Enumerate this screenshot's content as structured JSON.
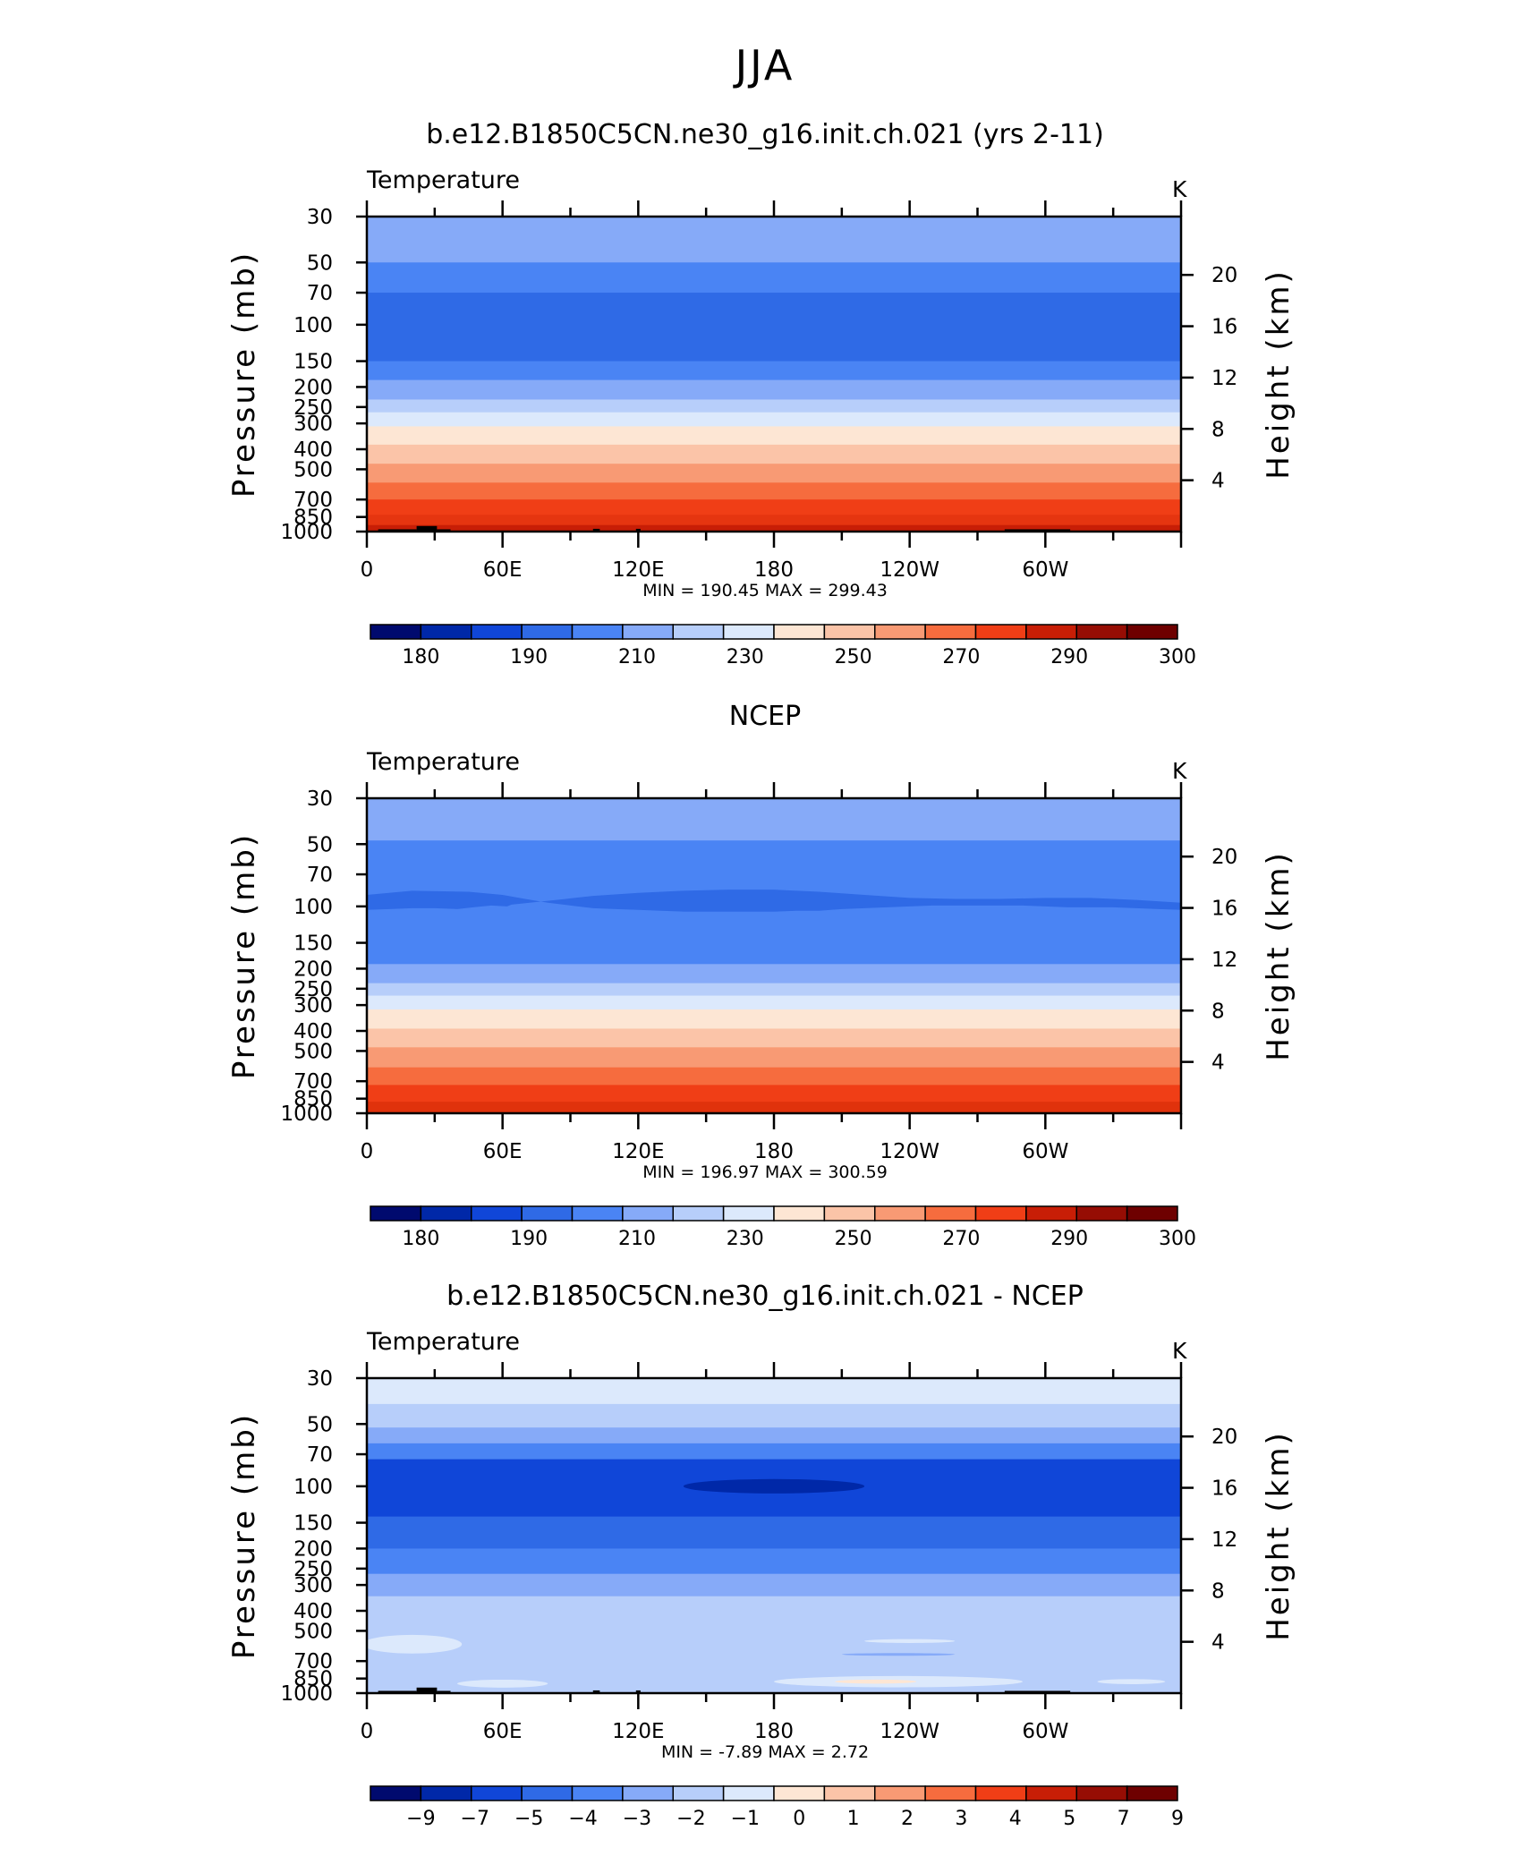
{
  "page_title": "JJA",
  "chart_data": [
    {
      "type": "contour",
      "title": "b.e12.B1850C5CN.ne30_g16.init.ch.021 (yrs 2-11)",
      "variable": "Temperature",
      "units": "K",
      "xlabel": "",
      "ylabel": "Pressure (mb)",
      "y2label": "Height (km)",
      "x_ticks": [
        "0",
        "60E",
        "120E",
        "180",
        "120W",
        "60W"
      ],
      "pressure_levels": [
        "30",
        "50",
        "70",
        "100",
        "150",
        "200",
        "250",
        "300",
        "400",
        "500",
        "700",
        "850",
        "1000"
      ],
      "height_ticks": [
        "20",
        "16",
        "12",
        "8",
        "4"
      ],
      "stats": "MIN = 190.45   MAX = 299.43",
      "min": 190.45,
      "max": 299.43,
      "colorbar_labels": [
        "180",
        "190",
        "210",
        "230",
        "250",
        "270",
        "290",
        "300"
      ],
      "colorbar_colors": [
        "#000a6e",
        "#0028a8",
        "#1046d8",
        "#2f6ae6",
        "#4a84f4",
        "#86aaf8",
        "#b7cefa",
        "#dce9fc",
        "#fde6d4",
        "#fbc4a8",
        "#f89a74",
        "#f66c3e",
        "#f03e16",
        "#c81e06",
        "#960d04",
        "#6e0000"
      ],
      "bands": [
        {
          "from": 30,
          "to": 50,
          "color": "#86aaf8"
        },
        {
          "from": 50,
          "to": 70,
          "color": "#4a84f4"
        },
        {
          "from": 70,
          "to": 150,
          "color": "#2f6ae6"
        },
        {
          "from": 150,
          "to": 185,
          "color": "#4a84f4"
        },
        {
          "from": 185,
          "to": 230,
          "color": "#86aaf8"
        },
        {
          "from": 230,
          "to": 265,
          "color": "#b7cefa"
        },
        {
          "from": 265,
          "to": 310,
          "color": "#dce9fc"
        },
        {
          "from": 310,
          "to": 380,
          "color": "#fde6d4"
        },
        {
          "from": 380,
          "to": 470,
          "color": "#fbc4a8"
        },
        {
          "from": 470,
          "to": 580,
          "color": "#f89a74"
        },
        {
          "from": 580,
          "to": 700,
          "color": "#f66c3e"
        },
        {
          "from": 700,
          "to": 830,
          "color": "#f03e16"
        },
        {
          "from": 830,
          "to": 930,
          "color": "#e53510"
        },
        {
          "from": 930,
          "to": 1000,
          "color": "#c81e06"
        }
      ],
      "features": [],
      "topography": true
    },
    {
      "type": "contour",
      "title": "NCEP",
      "variable": "Temperature",
      "units": "K",
      "xlabel": "",
      "ylabel": "Pressure (mb)",
      "y2label": "Height (km)",
      "x_ticks": [
        "0",
        "60E",
        "120E",
        "180",
        "120W",
        "60W"
      ],
      "pressure_levels": [
        "30",
        "50",
        "70",
        "100",
        "150",
        "200",
        "250",
        "300",
        "400",
        "500",
        "700",
        "850",
        "1000"
      ],
      "height_ticks": [
        "20",
        "16",
        "12",
        "8",
        "4"
      ],
      "stats": "MIN = 196.97   MAX = 300.59",
      "min": 196.97,
      "max": 300.59,
      "colorbar_labels": [
        "180",
        "190",
        "210",
        "230",
        "250",
        "270",
        "290",
        "300"
      ],
      "colorbar_colors": [
        "#000a6e",
        "#0028a8",
        "#1046d8",
        "#2f6ae6",
        "#4a84f4",
        "#86aaf8",
        "#b7cefa",
        "#dce9fc",
        "#fde6d4",
        "#fbc4a8",
        "#f89a74",
        "#f66c3e",
        "#f03e16",
        "#c81e06",
        "#960d04",
        "#6e0000"
      ],
      "bands": [
        {
          "from": 30,
          "to": 48,
          "color": "#86aaf8"
        },
        {
          "from": 48,
          "to": 145,
          "color": "#4a84f4"
        },
        {
          "from": 145,
          "to": 190,
          "color": "#4a84f4"
        },
        {
          "from": 190,
          "to": 235,
          "color": "#86aaf8"
        },
        {
          "from": 235,
          "to": 270,
          "color": "#b7cefa"
        },
        {
          "from": 270,
          "to": 315,
          "color": "#dce9fc"
        },
        {
          "from": 315,
          "to": 390,
          "color": "#fde6d4"
        },
        {
          "from": 390,
          "to": 480,
          "color": "#fbc4a8"
        },
        {
          "from": 480,
          "to": 600,
          "color": "#f89a74"
        },
        {
          "from": 600,
          "to": 730,
          "color": "#f66c3e"
        },
        {
          "from": 730,
          "to": 880,
          "color": "#f03e16"
        },
        {
          "from": 880,
          "to": 1000,
          "color": "#e0320c"
        }
      ],
      "features": [
        {
          "type": "blob",
          "color": "#2f6ae6",
          "points": [
            [
              0,
              88
            ],
            [
              20,
              84
            ],
            [
              45,
              85
            ],
            [
              60,
              88
            ],
            [
              70,
              92
            ],
            [
              80,
              96
            ],
            [
              90,
              99
            ],
            [
              100,
              102
            ],
            [
              110,
              103
            ],
            [
              120,
              104
            ],
            [
              130,
              105
            ],
            [
              140,
              106
            ],
            [
              150,
              106
            ],
            [
              160,
              106
            ],
            [
              170,
              106
            ],
            [
              180,
              106
            ],
            [
              190,
              105
            ],
            [
              200,
              105
            ],
            [
              210,
              103
            ],
            [
              220,
              102
            ],
            [
              230,
              101
            ],
            [
              240,
              100
            ],
            [
              250,
              99
            ],
            [
              260,
              99
            ],
            [
              270,
              99
            ],
            [
              280,
              99
            ],
            [
              290,
              99
            ],
            [
              300,
              100
            ],
            [
              310,
              101
            ],
            [
              320,
              101
            ],
            [
              330,
              101
            ],
            [
              340,
              102
            ],
            [
              350,
              103
            ],
            [
              360,
              104
            ],
            [
              360,
              96
            ],
            [
              340,
              93
            ],
            [
              320,
              91
            ],
            [
              300,
              91
            ],
            [
              280,
              92
            ],
            [
              260,
              92
            ],
            [
              240,
              91
            ],
            [
              220,
              88
            ],
            [
              200,
              85
            ],
            [
              180,
              83
            ],
            [
              160,
              83
            ],
            [
              140,
              84
            ],
            [
              120,
              86
            ],
            [
              100,
              89
            ],
            [
              80,
              94
            ],
            [
              64,
              98
            ],
            [
              62,
              100
            ],
            [
              55,
              99
            ],
            [
              47,
              101
            ],
            [
              40,
              103
            ],
            [
              30,
              102
            ],
            [
              20,
              102
            ],
            [
              10,
              103
            ],
            [
              0,
              104
            ]
          ]
        }
      ],
      "topography": false
    },
    {
      "type": "contour",
      "title": "b.e12.B1850C5CN.ne30_g16.init.ch.021 - NCEP",
      "variable": "Temperature",
      "units": "K",
      "xlabel": "",
      "ylabel": "Pressure (mb)",
      "y2label": "Height (km)",
      "x_ticks": [
        "0",
        "60E",
        "120E",
        "180",
        "120W",
        "60W"
      ],
      "pressure_levels": [
        "30",
        "50",
        "70",
        "100",
        "150",
        "200",
        "250",
        "300",
        "400",
        "500",
        "700",
        "850",
        "1000"
      ],
      "height_ticks": [
        "20",
        "16",
        "12",
        "8",
        "4"
      ],
      "stats": "MIN =   -7.89   MAX =     2.72",
      "min": -7.89,
      "max": 2.72,
      "colorbar_labels": [
        "-9",
        "-7",
        "-5",
        "-4",
        "-3",
        "-2",
        "-1",
        "0",
        "1",
        "2",
        "3",
        "4",
        "5",
        "7",
        "9"
      ],
      "colorbar_colors": [
        "#000a6e",
        "#0028a8",
        "#1046d8",
        "#2f6ae6",
        "#4a84f4",
        "#86aaf8",
        "#b7cefa",
        "#dce9fc",
        "#fde6d4",
        "#fbc4a8",
        "#f89a74",
        "#f66c3e",
        "#f03e16",
        "#c81e06",
        "#960d04",
        "#6e0000"
      ],
      "bands": [
        {
          "from": 30,
          "to": 40,
          "color": "#dce9fc"
        },
        {
          "from": 40,
          "to": 52,
          "color": "#b7cefa"
        },
        {
          "from": 52,
          "to": 62,
          "color": "#86aaf8"
        },
        {
          "from": 62,
          "to": 74,
          "color": "#4a84f4"
        },
        {
          "from": 74,
          "to": 140,
          "color": "#1046d8"
        },
        {
          "from": 140,
          "to": 200,
          "color": "#2f6ae6"
        },
        {
          "from": 200,
          "to": 265,
          "color": "#4a84f4"
        },
        {
          "from": 265,
          "to": 340,
          "color": "#86aaf8"
        },
        {
          "from": 340,
          "to": 1000,
          "color": "#b7cefa"
        }
      ],
      "features": [
        {
          "type": "ellipse",
          "color": "#0028a8",
          "cx": 180,
          "cp": 100,
          "rx": 40,
          "rp": 8
        },
        {
          "type": "ellipse",
          "color": "#dce9fc",
          "cx": 20,
          "cp": 580,
          "rx": 22,
          "rp": 60
        },
        {
          "type": "ellipse",
          "color": "#dce9fc",
          "cx": 60,
          "cp": 900,
          "rx": 20,
          "rp": 40
        },
        {
          "type": "ellipse",
          "color": "#dce9fc",
          "cx": 235,
          "cp": 880,
          "rx": 55,
          "rp": 55
        },
        {
          "type": "ellipse",
          "color": "#fde6d4",
          "cx": 225,
          "cp": 880,
          "rx": 18,
          "rp": 20
        },
        {
          "type": "ellipse",
          "color": "#dce9fc",
          "cx": 338,
          "cp": 880,
          "rx": 15,
          "rp": 25
        },
        {
          "type": "ellipse",
          "color": "#dce9fc",
          "cx": 240,
          "cp": 560,
          "rx": 20,
          "rp": 12
        },
        {
          "type": "ellipse",
          "color": "#86aaf8",
          "cx": 235,
          "cp": 650,
          "rx": 25,
          "rp": 10
        }
      ],
      "topography": true
    }
  ]
}
